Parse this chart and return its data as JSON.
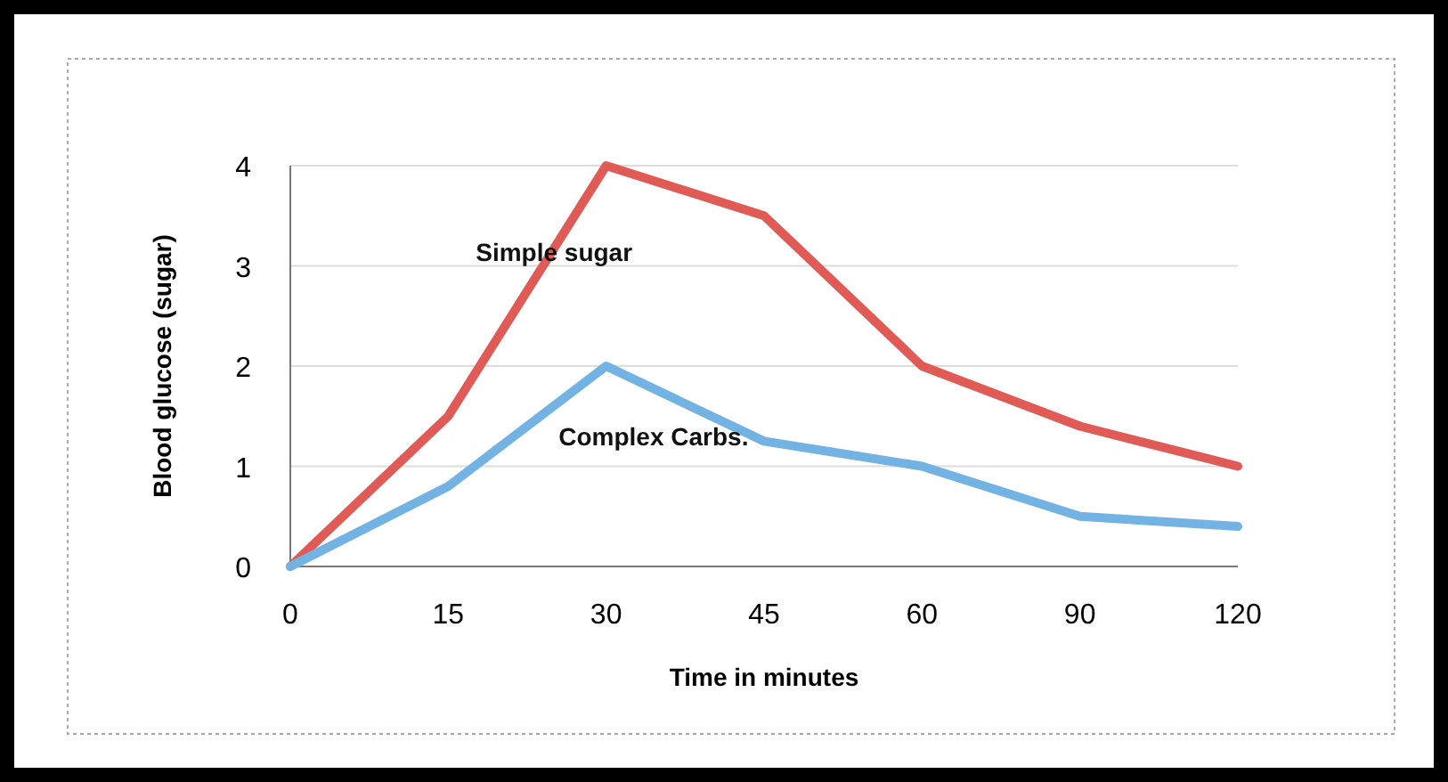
{
  "chart_data": {
    "type": "line",
    "xlabel": "Time in minutes",
    "ylabel": "Blood glucose (sugar)",
    "categories": [
      "0",
      "15",
      "30",
      "45",
      "60",
      "90",
      "120"
    ],
    "series": [
      {
        "name": "Simple sugar",
        "color": "#e05a56",
        "values": [
          0,
          1.5,
          4,
          3.5,
          2,
          1.4,
          1
        ]
      },
      {
        "name": "Complex Carbs.",
        "color": "#72b3e3",
        "values": [
          0,
          0.8,
          2,
          1.25,
          1,
          0.5,
          0.4
        ]
      }
    ],
    "ylim": [
      0,
      4
    ],
    "yticks": [
      0,
      1,
      2,
      3,
      4
    ],
    "grid": "y",
    "marker": "none",
    "line_style": "solid"
  }
}
